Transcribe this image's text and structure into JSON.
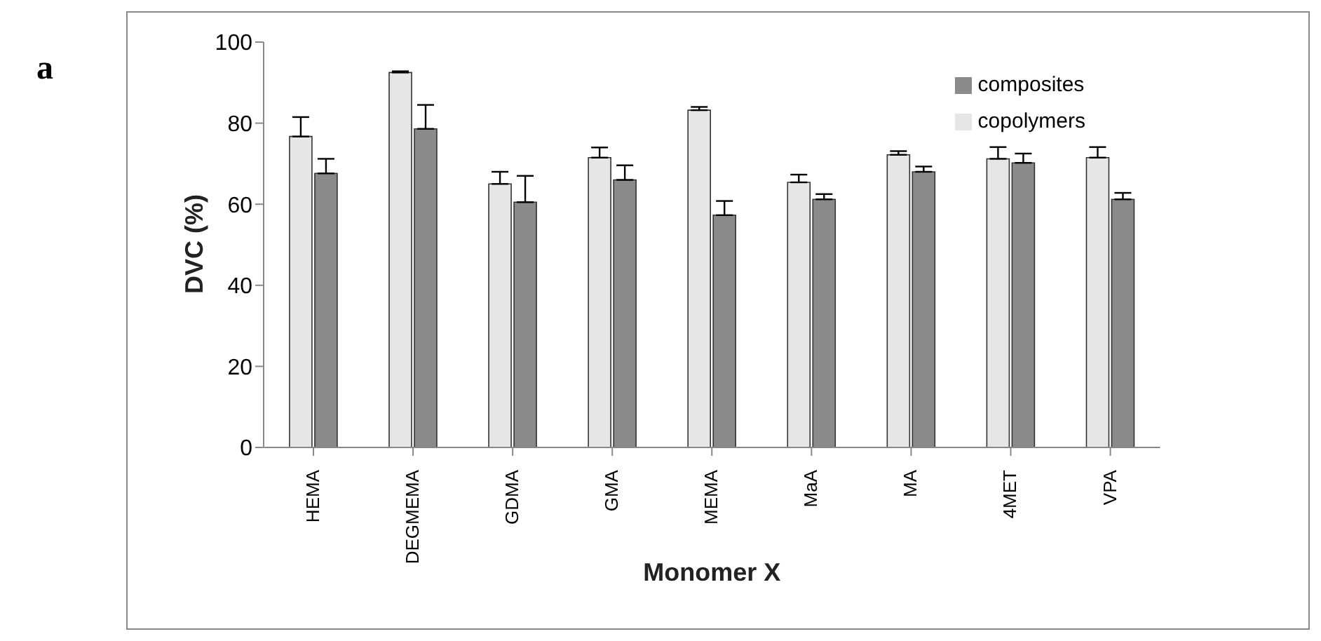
{
  "chart_data": {
    "type": "bar",
    "xlabel": "Monomer X",
    "ylabel": "DVC (%)",
    "annotations": [
      "a"
    ],
    "categories": [
      "HEMA",
      "DEGMEMA",
      "GDMA",
      "GMA",
      "MEMA",
      "MaA",
      "MA",
      "4MET",
      "VPA"
    ],
    "series": [
      {
        "name": "copolymers",
        "color": "#e6e6e6",
        "values": [
          76.7,
          92.5,
          65,
          71.5,
          83.2,
          65.4,
          72.2,
          71.2,
          71.5
        ],
        "errors": [
          [
            76.7,
            81.5
          ],
          [
            92.5,
            92.8
          ],
          [
            65,
            68
          ],
          [
            71.5,
            74
          ],
          [
            83.2,
            84
          ],
          [
            65.4,
            67.3
          ],
          [
            72.2,
            73.1
          ],
          [
            71.2,
            74.1
          ],
          [
            71.5,
            74.1
          ]
        ]
      },
      {
        "name": "composites",
        "color": "#8a8a8a",
        "values": [
          67.6,
          78.6,
          60.5,
          66,
          57.3,
          61.2,
          68,
          70.2,
          61.2
        ],
        "errors": [
          [
            67.6,
            71.2
          ],
          [
            78.6,
            84.5
          ],
          [
            60.5,
            67
          ],
          [
            66,
            69.6
          ],
          [
            57.3,
            60.8
          ],
          [
            61.2,
            62.5
          ],
          [
            68,
            69.3
          ],
          [
            70.2,
            72.5
          ],
          [
            61.2,
            62.8
          ]
        ]
      }
    ],
    "ylim": [
      0,
      100
    ],
    "yticks": [
      0,
      20,
      40,
      60,
      80,
      100
    ],
    "grid": false,
    "legend": "top right"
  }
}
